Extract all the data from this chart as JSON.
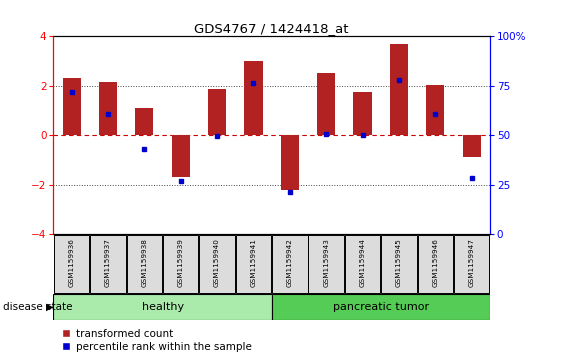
{
  "title": "GDS4767 / 1424418_at",
  "samples": [
    "GSM1159936",
    "GSM1159937",
    "GSM1159938",
    "GSM1159939",
    "GSM1159940",
    "GSM1159941",
    "GSM1159942",
    "GSM1159943",
    "GSM1159944",
    "GSM1159945",
    "GSM1159946",
    "GSM1159947"
  ],
  "bar_values": [
    2.3,
    2.15,
    1.1,
    -1.7,
    1.85,
    3.0,
    -2.2,
    2.5,
    1.75,
    3.7,
    2.05,
    -0.9
  ],
  "dot_values": [
    1.75,
    0.85,
    -0.55,
    -1.85,
    -0.02,
    2.1,
    -2.3,
    0.05,
    0.02,
    2.25,
    0.85,
    -1.75
  ],
  "bar_color": "#B22222",
  "dot_color": "#0000CC",
  "healthy_count": 6,
  "tumor_count": 6,
  "healthy_label": "healthy",
  "tumor_label": "pancreatic tumor",
  "disease_state_label": "disease state",
  "healthy_color": "#AAEAAA",
  "tumor_color": "#55CC55",
  "ylim": [
    -4,
    4
  ],
  "y2lim": [
    0,
    100
  ],
  "y2ticks": [
    0,
    25,
    50,
    75,
    100
  ],
  "y2ticklabels": [
    "0",
    "25",
    "50",
    "75",
    "100%"
  ],
  "yticks": [
    -4,
    -2,
    0,
    2,
    4
  ],
  "hlines": [
    -2,
    2
  ],
  "legend_bar_label": "transformed count",
  "legend_dot_label": "percentile rank within the sample",
  "background_color": "#ffffff",
  "zero_line_color": "#CC0000",
  "dotted_line_color": "#444444",
  "xtick_bg": "#DCDCDC",
  "bar_width": 0.5
}
